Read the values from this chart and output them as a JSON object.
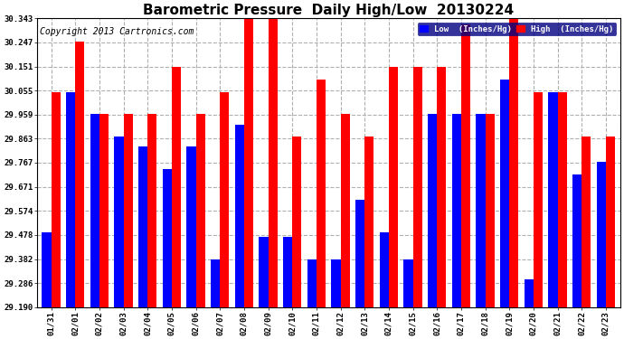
{
  "title": "Barometric Pressure  Daily High/Low  20130224",
  "copyright": "Copyright 2013 Cartronics.com",
  "legend_low": "Low  (Inches/Hg)",
  "legend_high": "High  (Inches/Hg)",
  "dates": [
    "01/31",
    "02/01",
    "02/02",
    "02/03",
    "02/04",
    "02/05",
    "02/06",
    "02/07",
    "02/08",
    "02/09",
    "02/10",
    "02/11",
    "02/12",
    "02/13",
    "02/14",
    "02/15",
    "02/16",
    "02/17",
    "02/18",
    "02/19",
    "02/20",
    "02/21",
    "02/22",
    "02/23"
  ],
  "low": [
    29.49,
    30.05,
    29.96,
    29.87,
    29.83,
    29.74,
    29.83,
    29.38,
    29.92,
    29.47,
    29.47,
    29.38,
    29.38,
    29.62,
    29.49,
    29.38,
    29.96,
    29.96,
    29.96,
    30.1,
    29.3,
    30.05,
    29.72,
    29.77
  ],
  "high": [
    30.05,
    30.25,
    29.96,
    29.96,
    29.96,
    30.15,
    29.96,
    30.05,
    30.34,
    30.34,
    29.87,
    30.1,
    29.96,
    29.87,
    30.15,
    30.15,
    30.15,
    30.32,
    29.96,
    30.34,
    30.05,
    30.05,
    29.87,
    29.87
  ],
  "ymin": 29.19,
  "ymax": 30.343,
  "yticks": [
    29.19,
    29.286,
    29.382,
    29.478,
    29.574,
    29.671,
    29.767,
    29.863,
    29.959,
    30.055,
    30.151,
    30.247,
    30.343
  ],
  "color_low": "#0000ff",
  "color_high": "#ff0000",
  "background_color": "#ffffff",
  "grid_color": "#b0b0b0",
  "bar_width": 0.38,
  "title_fontsize": 11,
  "copyright_fontsize": 7
}
